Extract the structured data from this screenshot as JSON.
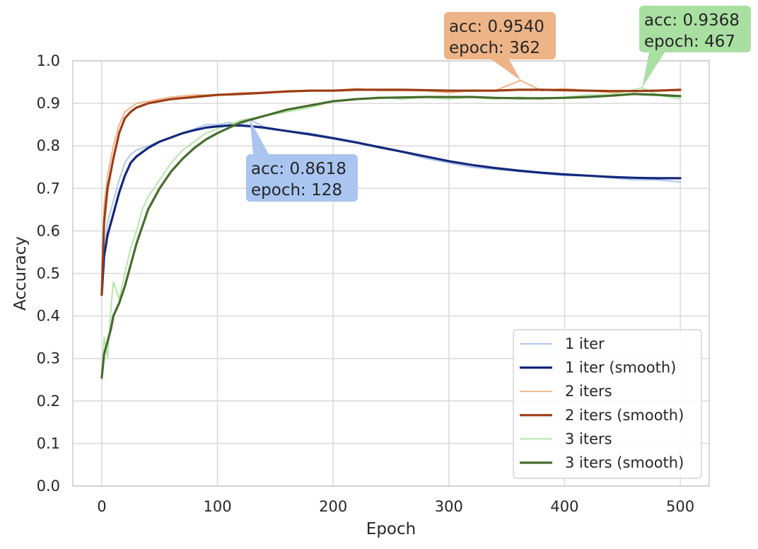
{
  "chart_data": {
    "type": "line",
    "title": "",
    "xlabel": "Epoch",
    "ylabel": "Accuracy",
    "xlim": [
      -25,
      525
    ],
    "ylim": [
      0.0,
      1.0
    ],
    "xticks": [
      0,
      100,
      200,
      300,
      400,
      500
    ],
    "yticks": [
      0.0,
      0.1,
      0.2,
      0.3,
      0.4,
      0.5,
      0.6,
      0.7,
      0.8,
      0.9,
      1.0
    ],
    "xtick_labels": [
      "0",
      "100",
      "200",
      "300",
      "400",
      "500"
    ],
    "ytick_labels": [
      "0.0",
      "0.1",
      "0.2",
      "0.3",
      "0.4",
      "0.5",
      "0.6",
      "0.7",
      "0.8",
      "0.9",
      "1.0"
    ],
    "grid": true,
    "legend_position": "lower-right",
    "series": [
      {
        "name": "1 iter",
        "color": "#aec7f0",
        "style": "raw",
        "x": [
          0,
          2,
          5,
          10,
          15,
          20,
          25,
          30,
          40,
          50,
          60,
          70,
          80,
          90,
          100,
          110,
          120,
          128,
          140,
          160,
          180,
          200,
          220,
          240,
          260,
          280,
          300,
          320,
          340,
          360,
          380,
          400,
          420,
          440,
          460,
          480,
          500
        ],
        "y": [
          0.45,
          0.55,
          0.62,
          0.67,
          0.72,
          0.76,
          0.78,
          0.79,
          0.8,
          0.81,
          0.82,
          0.83,
          0.84,
          0.85,
          0.85,
          0.855,
          0.85,
          0.8618,
          0.845,
          0.835,
          0.83,
          0.82,
          0.81,
          0.795,
          0.785,
          0.77,
          0.76,
          0.75,
          0.745,
          0.74,
          0.735,
          0.73,
          0.73,
          0.725,
          0.72,
          0.72,
          0.715
        ]
      },
      {
        "name": "1 iter (smooth)",
        "color": "#14287a",
        "style": "smooth",
        "x": [
          0,
          2,
          5,
          10,
          15,
          20,
          25,
          30,
          40,
          50,
          60,
          70,
          80,
          90,
          100,
          110,
          120,
          130,
          140,
          160,
          180,
          200,
          220,
          240,
          260,
          280,
          300,
          320,
          340,
          360,
          380,
          400,
          420,
          440,
          460,
          480,
          500
        ],
        "y": [
          0.45,
          0.54,
          0.59,
          0.64,
          0.69,
          0.73,
          0.76,
          0.775,
          0.795,
          0.81,
          0.82,
          0.83,
          0.837,
          0.843,
          0.846,
          0.848,
          0.848,
          0.846,
          0.843,
          0.835,
          0.827,
          0.818,
          0.808,
          0.797,
          0.786,
          0.775,
          0.764,
          0.755,
          0.748,
          0.742,
          0.737,
          0.733,
          0.73,
          0.727,
          0.725,
          0.724,
          0.724
        ]
      },
      {
        "name": "2 iters",
        "color": "#f0b48a",
        "style": "raw",
        "x": [
          0,
          2,
          5,
          10,
          15,
          20,
          25,
          30,
          40,
          50,
          60,
          80,
          100,
          120,
          140,
          160,
          180,
          200,
          220,
          240,
          260,
          280,
          300,
          320,
          340,
          362,
          380,
          400,
          420,
          440,
          460,
          480,
          500
        ],
        "y": [
          0.45,
          0.66,
          0.73,
          0.8,
          0.85,
          0.88,
          0.89,
          0.9,
          0.905,
          0.91,
          0.915,
          0.92,
          0.92,
          0.925,
          0.925,
          0.93,
          0.93,
          0.93,
          0.935,
          0.93,
          0.93,
          0.93,
          0.925,
          0.93,
          0.93,
          0.954,
          0.93,
          0.935,
          0.93,
          0.925,
          0.93,
          0.93,
          0.93
        ]
      },
      {
        "name": "2 iters (smooth)",
        "color": "#9c3d14",
        "style": "smooth",
        "x": [
          0,
          2,
          5,
          10,
          15,
          20,
          25,
          30,
          40,
          50,
          60,
          80,
          100,
          120,
          140,
          160,
          180,
          200,
          220,
          240,
          260,
          280,
          300,
          320,
          340,
          360,
          380,
          400,
          420,
          440,
          460,
          480,
          500
        ],
        "y": [
          0.45,
          0.62,
          0.7,
          0.77,
          0.83,
          0.865,
          0.88,
          0.89,
          0.9,
          0.905,
          0.91,
          0.915,
          0.92,
          0.922,
          0.925,
          0.928,
          0.93,
          0.93,
          0.932,
          0.932,
          0.932,
          0.931,
          0.93,
          0.93,
          0.93,
          0.932,
          0.932,
          0.931,
          0.93,
          0.929,
          0.929,
          0.93,
          0.932
        ]
      },
      {
        "name": "3 iters",
        "color": "#b5e6ac",
        "style": "raw",
        "x": [
          0,
          2,
          5,
          8,
          10,
          15,
          20,
          25,
          30,
          35,
          40,
          50,
          60,
          70,
          80,
          90,
          100,
          120,
          140,
          160,
          180,
          200,
          220,
          240,
          260,
          280,
          300,
          320,
          340,
          360,
          380,
          400,
          420,
          440,
          467,
          480,
          500
        ],
        "y": [
          0.25,
          0.35,
          0.3,
          0.42,
          0.48,
          0.44,
          0.5,
          0.56,
          0.6,
          0.65,
          0.68,
          0.72,
          0.76,
          0.79,
          0.81,
          0.83,
          0.84,
          0.86,
          0.87,
          0.88,
          0.89,
          0.905,
          0.91,
          0.915,
          0.91,
          0.915,
          0.91,
          0.915,
          0.91,
          0.915,
          0.91,
          0.915,
          0.92,
          0.92,
          0.9368,
          0.92,
          0.91
        ]
      },
      {
        "name": "3 iters (smooth)",
        "color": "#456d2c",
        "style": "smooth",
        "x": [
          0,
          2,
          5,
          8,
          10,
          15,
          20,
          25,
          30,
          35,
          40,
          50,
          60,
          70,
          80,
          90,
          100,
          120,
          140,
          160,
          180,
          200,
          220,
          240,
          260,
          280,
          300,
          320,
          340,
          360,
          380,
          400,
          420,
          440,
          460,
          480,
          500
        ],
        "y": [
          0.255,
          0.31,
          0.34,
          0.37,
          0.4,
          0.43,
          0.47,
          0.52,
          0.57,
          0.61,
          0.65,
          0.7,
          0.74,
          0.77,
          0.795,
          0.815,
          0.83,
          0.855,
          0.87,
          0.885,
          0.895,
          0.905,
          0.91,
          0.913,
          0.914,
          0.915,
          0.915,
          0.915,
          0.913,
          0.912,
          0.912,
          0.913,
          0.915,
          0.918,
          0.922,
          0.92,
          0.917
        ]
      }
    ],
    "annotations": [
      {
        "line1": "acc: 0.8618",
        "line2": "epoch: 128",
        "x": 128,
        "y": 0.8618,
        "color": "#a9c5f0"
      },
      {
        "line1": "acc: 0.9540",
        "line2": "epoch: 362",
        "x": 362,
        "y": 0.954,
        "color": "#edb487"
      },
      {
        "line1": "acc: 0.9368",
        "line2": "epoch: 467",
        "x": 467,
        "y": 0.9368,
        "color": "#a9e0a2"
      }
    ]
  }
}
